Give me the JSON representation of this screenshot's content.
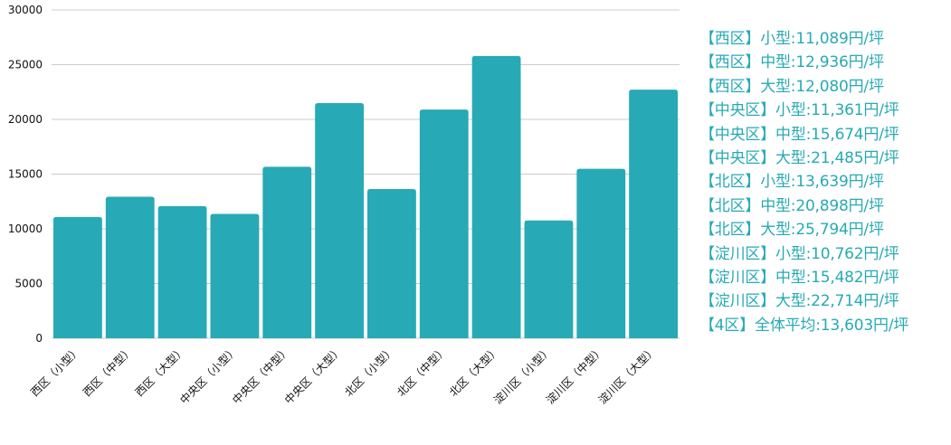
{
  "chart_data": {
    "type": "bar",
    "categories": [
      "西区（小型）",
      "西区（中型）",
      "西区（大型）",
      "中央区（小型）",
      "中央区（中型）",
      "中央区（大型）",
      "北区（小型）",
      "北区（中型）",
      "北区（大型）",
      "淀川区（小型）",
      "淀川区（中型）",
      "淀川区（大型）"
    ],
    "values": [
      11089,
      12936,
      12080,
      11361,
      15674,
      21485,
      13639,
      20898,
      25794,
      10762,
      15482,
      22714
    ],
    "ylim": [
      0,
      30000
    ],
    "y_ticks": [
      0,
      5000,
      10000,
      15000,
      20000,
      25000,
      30000
    ],
    "grid": true,
    "bar_color": "#27aab5",
    "grid_color": "#cccccc",
    "legend_color": "#27aab5",
    "legend_placement": "right",
    "annotations": [
      "【西区】小型:11,089円/坪",
      "【西区】中型:12,936円/坪",
      "【西区】大型:12,080円/坪",
      "【中央区】小型:11,361円/坪",
      "【中央区】中型:15,674円/坪",
      "【中央区】大型:21,485円/坪",
      "【北区】小型:13,639円/坪",
      "【北区】中型:20,898円/坪",
      "【北区】大型:25,794円/坪",
      "【淀川区】小型:10,762円/坪",
      "【淀川区】中型:15,482円/坪",
      "【淀川区】大型:22,714円/坪",
      "【4区】全体平均:13,603円/坪"
    ]
  }
}
